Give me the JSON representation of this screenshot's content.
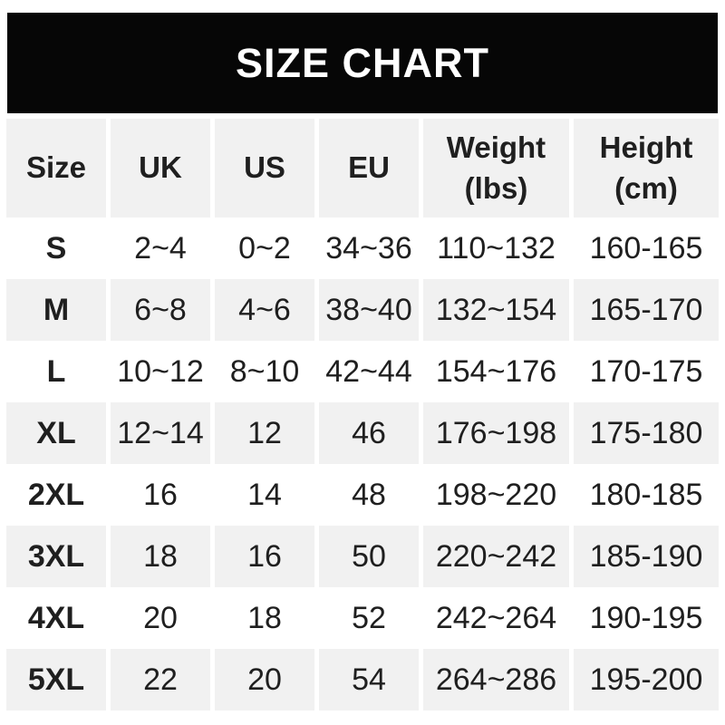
{
  "banner": {
    "title": "SIZE CHART"
  },
  "chart_data": {
    "type": "table",
    "title": "SIZE CHART",
    "columns": [
      {
        "label": "Size"
      },
      {
        "label": "UK"
      },
      {
        "label": "US"
      },
      {
        "label": "EU"
      },
      {
        "label": "Weight",
        "sub": "(lbs)"
      },
      {
        "label": "Height",
        "sub": "(cm)"
      }
    ],
    "rows": [
      [
        "S",
        "2~4",
        "0~2",
        "34~36",
        "110~132",
        "160-165"
      ],
      [
        "M",
        "6~8",
        "4~6",
        "38~40",
        "132~154",
        "165-170"
      ],
      [
        "L",
        "10~12",
        "8~10",
        "42~44",
        "154~176",
        "170-175"
      ],
      [
        "XL",
        "12~14",
        "12",
        "46",
        "176~198",
        "175-180"
      ],
      [
        "2XL",
        "16",
        "14",
        "48",
        "198~220",
        "180-185"
      ],
      [
        "3XL",
        "18",
        "16",
        "50",
        "220~242",
        "185-190"
      ],
      [
        "4XL",
        "20",
        "18",
        "52",
        "242~264",
        "190-195"
      ],
      [
        "5XL",
        "22",
        "20",
        "54",
        "264~286",
        "195-200"
      ]
    ]
  },
  "colors": {
    "banner_bg": "#060606",
    "banner_text": "#ffffff",
    "stripe": "#f1f1f1",
    "text": "#1f1f1f"
  }
}
